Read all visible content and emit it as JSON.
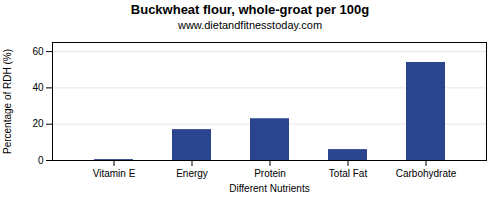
{
  "chart_data": {
    "type": "bar",
    "title": "Buckwheat flour, whole-groat per 100g",
    "subtitle": "www.dietandfitnesstoday.com",
    "xlabel": "Different Nutrients",
    "ylabel": "Percentage of RDH (%)",
    "categories": [
      "Vitamin E",
      "Energy",
      "Protein",
      "Total Fat",
      "Carbohydrate"
    ],
    "values": [
      0.5,
      17,
      23,
      6,
      54
    ],
    "color": "#2b4490",
    "ylim": [
      0,
      65
    ],
    "yticks": [
      0,
      20,
      40,
      60
    ],
    "grid": true
  }
}
